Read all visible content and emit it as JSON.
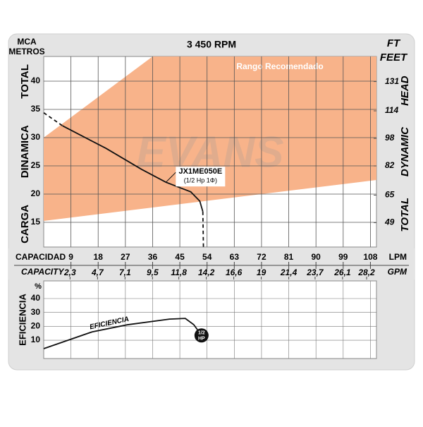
{
  "chart_data": [
    {
      "type": "line",
      "title": "3 450 RPM",
      "y_label_left_top": "MCA",
      "y_label_left_bottom": "METROS",
      "y_label_right_top": "FT",
      "y_label_right_bottom": "FEET",
      "y_label": "CARGA DINAMICA TOTAL",
      "y2_label": "TOTAL DYNAMIC HEAD",
      "x_label": "CAPACIDAD",
      "x_unit": "LPM",
      "x2_label": "CAPACITY",
      "x2_unit": "GPM",
      "watermark": "EVANS",
      "xlim": [
        0,
        110
      ],
      "xticks": [
        9,
        18,
        27,
        36,
        45,
        54,
        63,
        72,
        81,
        90,
        99,
        108
      ],
      "x2lim": [
        0,
        29.06
      ],
      "x2ticks": [
        {
          "value": 2.3,
          "label": "2,3"
        },
        {
          "value": 4.7,
          "label": "4,7"
        },
        {
          "value": 7.1,
          "label": "7,1"
        },
        {
          "value": 9.5,
          "label": "9,5"
        },
        {
          "value": 11.8,
          "label": "11,8"
        },
        {
          "value": 14.2,
          "label": "14,2"
        },
        {
          "value": 16.6,
          "label": "16,6"
        },
        {
          "value": 19,
          "label": "19"
        },
        {
          "value": 21.4,
          "label": "21,4"
        },
        {
          "value": 23.7,
          "label": "23,7"
        },
        {
          "value": 26.1,
          "label": "26,1"
        },
        {
          "value": 28.2,
          "label": "28,2"
        }
      ],
      "ylim": [
        10.625,
        44.375
      ],
      "yticks": [
        15,
        20,
        25,
        30,
        35,
        40
      ],
      "y2lim": [
        34.86,
        145.6
      ],
      "y2ticks": [
        49,
        65,
        82,
        98,
        114,
        131
      ],
      "grid": true,
      "region": {
        "name": "Rango Recomendado",
        "color": "#f8b38a",
        "x": [
          0,
          36,
          110,
          110,
          0
        ],
        "values": [
          30,
          44.375,
          44.375,
          22.5,
          15.25
        ]
      },
      "series": [
        {
          "name": "JX1ME050E",
          "color": "#111111",
          "dashed": false,
          "x": [
            6.2,
            20.6,
            32.3,
            40.4,
            48.6,
            51.6,
            52.6
          ],
          "values": [
            32.1,
            28.1,
            24.4,
            22.1,
            20.4,
            18.75,
            16.9
          ]
        },
        {
          "color": "#111111",
          "dashed": true,
          "x": [
            0,
            6.2
          ],
          "values": [
            34.4,
            32.1
          ]
        },
        {
          "color": "#111111",
          "dashed": true,
          "x": [
            52.6,
            52.8
          ],
          "values": [
            16.9,
            10.6
          ]
        }
      ],
      "annotation": {
        "text": "JX1ME050E",
        "subtext": "(1/2 Hp 1Φ)",
        "x": 40.4,
        "y": 22.1
      }
    },
    {
      "type": "line",
      "y_label": "EFICIENCIA",
      "y_unit": "%",
      "xlim": [
        0,
        110
      ],
      "ylim": [
        -3.2,
        52.7
      ],
      "yticks": [
        10,
        20,
        30,
        40
      ],
      "grid": true,
      "series": [
        {
          "name": "EFICIENCIA",
          "color": "#111111",
          "x": [
            0,
            16,
            27.6,
            41.6,
            46.8,
            49.6,
            51
          ],
          "values": [
            3.9,
            16,
            21.1,
            25.2,
            25.7,
            21.2,
            17
          ]
        }
      ],
      "end_marker": "1/2 HP"
    }
  ]
}
